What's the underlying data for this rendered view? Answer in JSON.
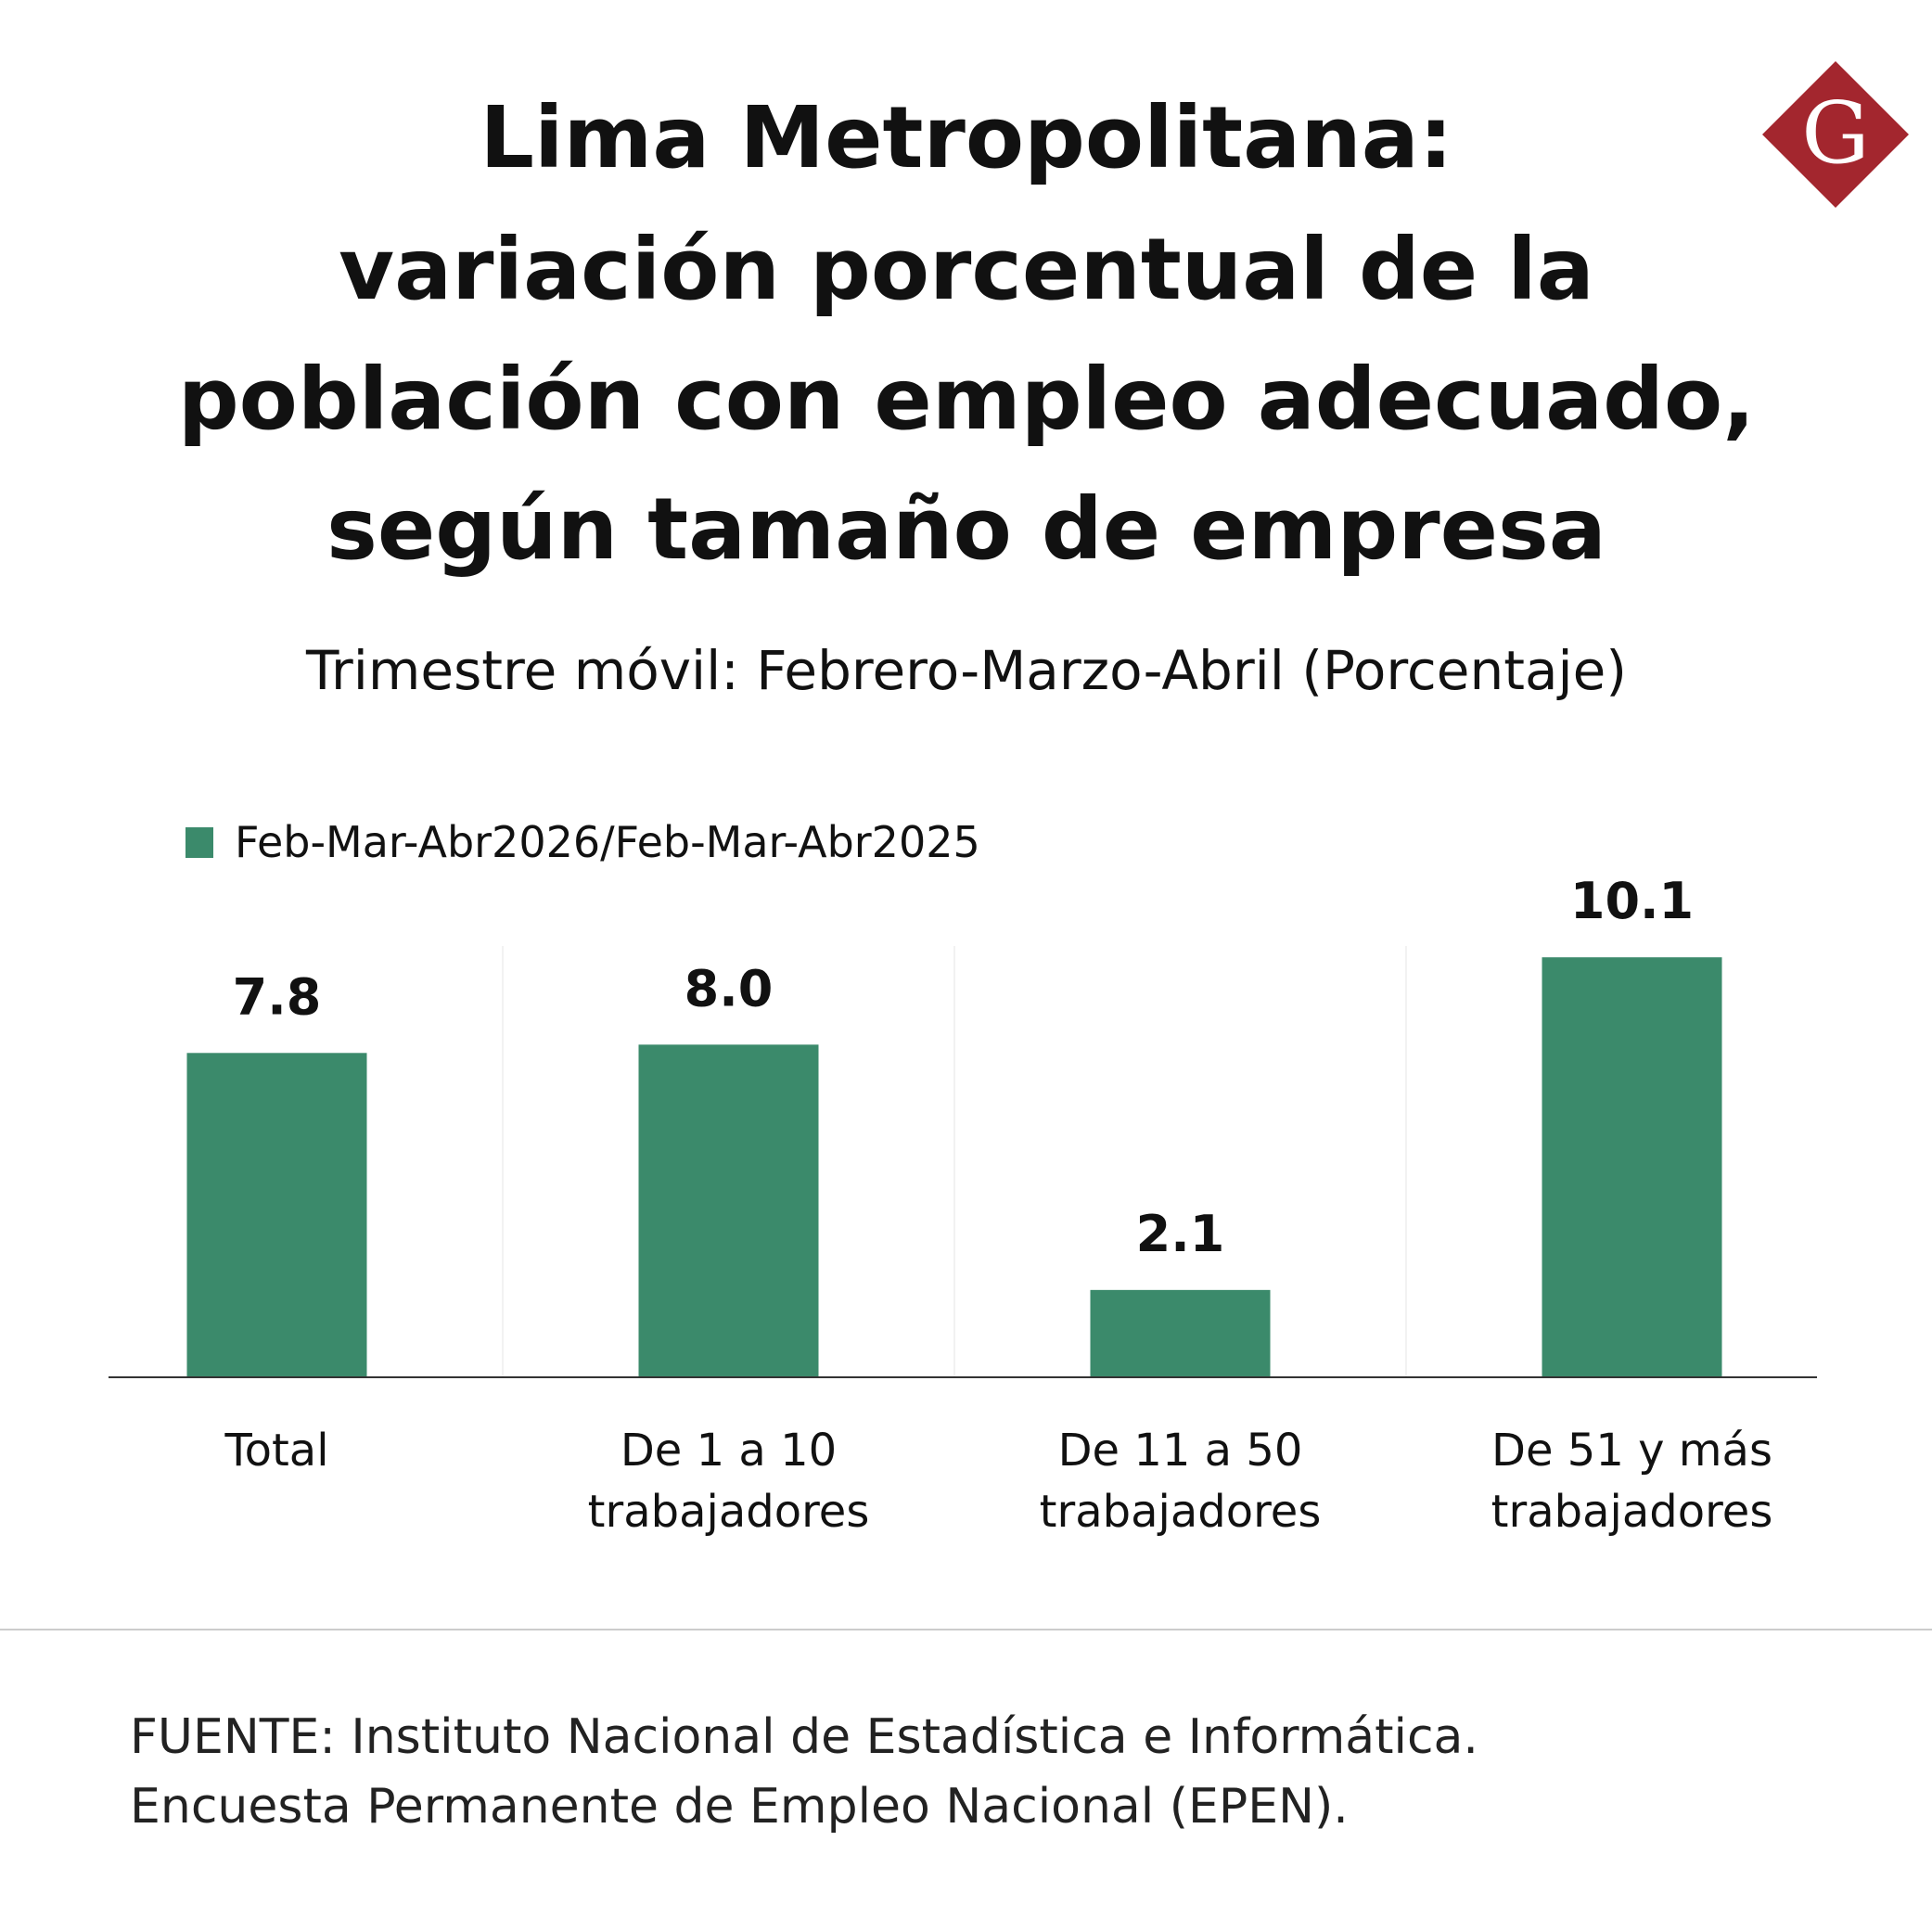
{
  "logo": "G",
  "chart_data": {
    "type": "bar",
    "title": [
      "Lima Metropolitana:",
      "variación porcentual de la",
      "población con empleo adecuado,",
      "según tamaño de empresa"
    ],
    "subtitle": "Trimestre móvil: Febrero-Marzo-Abril (Porcentaje)",
    "categories": [
      [
        "Total"
      ],
      [
        "De 1 a 10",
        "trabajadores"
      ],
      [
        "De 11 a 50",
        "trabajadores"
      ],
      [
        "De 51 y más",
        "trabajadores"
      ]
    ],
    "series": [
      {
        "name": "Feb-Mar-Abr2026/Feb-Mar-Abr2025",
        "color": "#3b8a6b",
        "values": [
          7.8,
          8.0,
          2.1,
          10.1
        ],
        "value_labels": [
          "7.8",
          "8.0",
          "2.1",
          "10.1"
        ]
      }
    ],
    "ylim": [
      0,
      12
    ],
    "source": [
      "FUENTE: Instituto Nacional de Estadística e Informática.",
      "Encuesta Permanente de Empleo Nacional (EPEN)."
    ]
  }
}
